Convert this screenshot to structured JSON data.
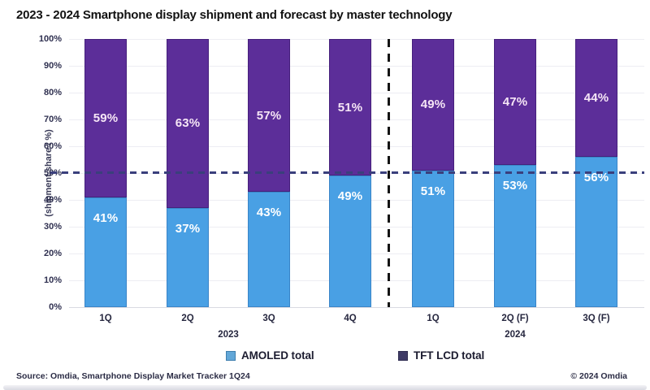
{
  "title": "2023 - 2024 Smartphone display shipment and forecast by master technology",
  "chart_data": {
    "type": "bar",
    "stacked": true,
    "units": "%",
    "categories": [
      "1Q",
      "2Q",
      "3Q",
      "4Q",
      "1Q",
      "2Q (F)",
      "3Q (F)"
    ],
    "group_labels": [
      "2023",
      "2024"
    ],
    "series": [
      {
        "name": "AMOLED total",
        "color": "#49A0E4",
        "values": [
          41,
          37,
          43,
          49,
          51,
          53,
          56
        ]
      },
      {
        "name": "TFT LCD total",
        "color": "#5C2E99",
        "values": [
          59,
          63,
          57,
          51,
          49,
          47,
          44
        ]
      }
    ],
    "ylabel": "(shipment share / %)",
    "y_ticks": [
      "100%",
      "90%",
      "80%",
      "70%",
      "60%",
      "50%",
      "40%",
      "30%",
      "20%",
      "10%",
      "0%"
    ],
    "ylim": [
      0,
      100
    ],
    "grid": true,
    "legend_position": "bottom",
    "reference_line": {
      "value": 50,
      "style": "dashed",
      "color": "#3a3f7c"
    },
    "separator": {
      "between_groups": true,
      "style": "dashed",
      "color": "#141414"
    }
  },
  "legend": {
    "items": [
      {
        "label": "AMOLED total",
        "color": "#62a7d8",
        "border": "#3f7fae"
      },
      {
        "label": "TFT LCD total",
        "color": "#3E3A66",
        "border": "#312e52"
      }
    ]
  },
  "footer": {
    "source": "Source: Omdia, Smartphone Display Market Tracker 1Q24",
    "copyright": "© 2024 Omdia"
  }
}
